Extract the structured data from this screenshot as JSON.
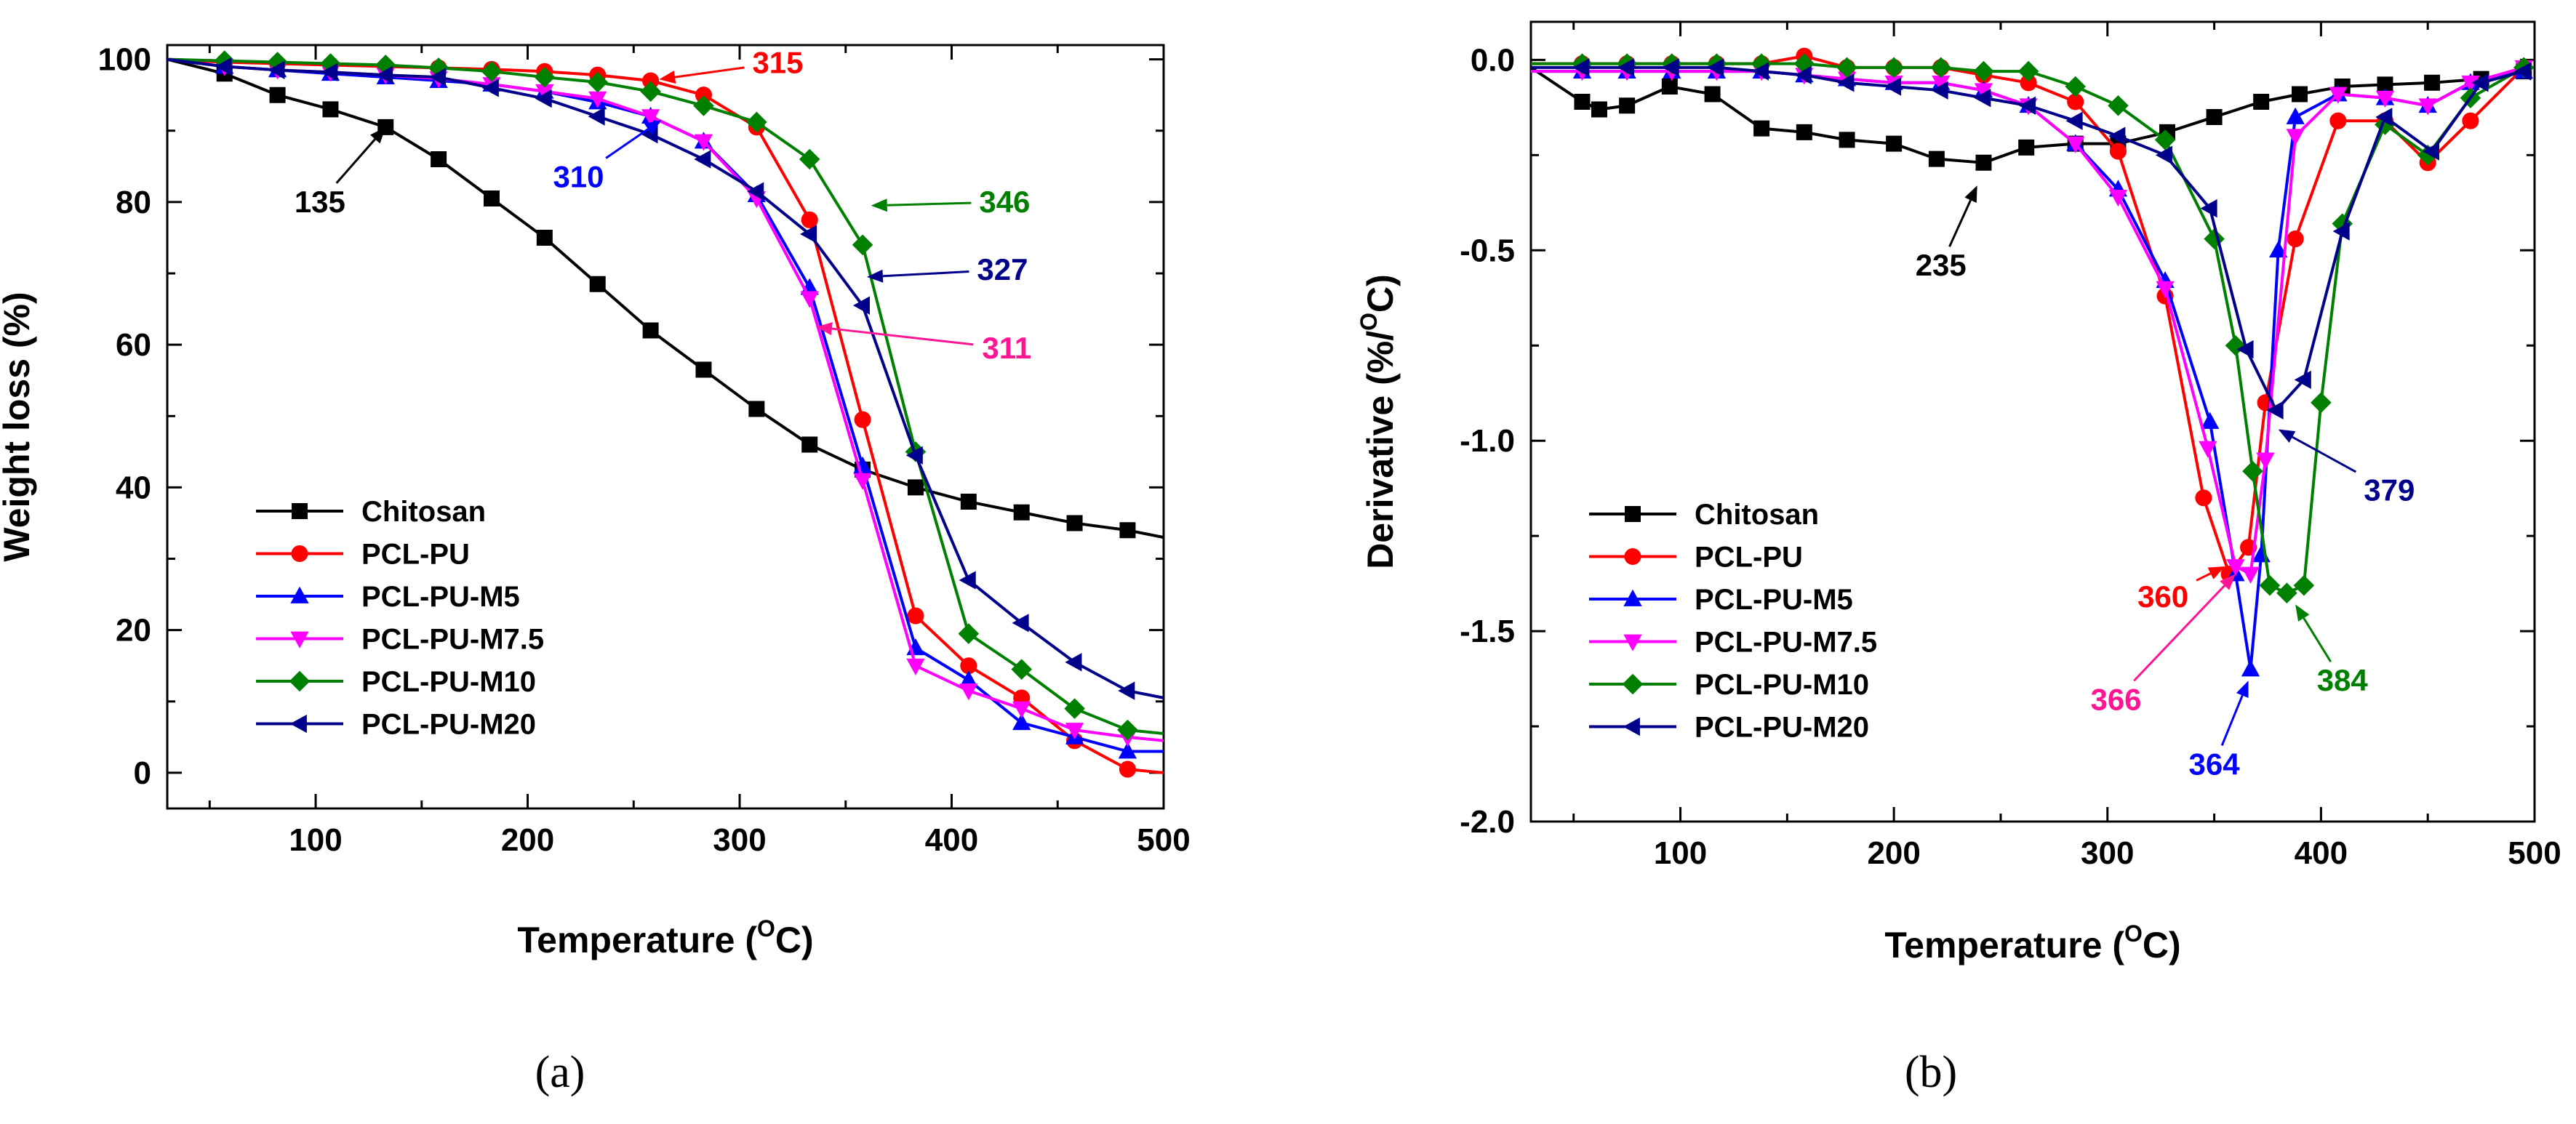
{
  "figure": {
    "panels": [
      {
        "panel_label": "(a)"
      },
      {
        "panel_label": "(b)"
      }
    ]
  },
  "chart_data": [
    {
      "type": "line",
      "title": "",
      "xlabel": "Temperature (°C)",
      "xlabel_parts": {
        "text": "Temperature (",
        "sup": "O",
        "unit": "C)"
      },
      "ylabel": "Weight loss (%)",
      "xlim": [
        30,
        500
      ],
      "ylim": [
        -5,
        102
      ],
      "xticks": [
        100,
        200,
        300,
        400,
        500
      ],
      "yticks": [
        0,
        20,
        40,
        60,
        80,
        100
      ],
      "legend_position": "bottom-left",
      "series": [
        {
          "name": "Chitosan",
          "color": "#000000",
          "marker": "square",
          "x": [
            30,
            57,
            82,
            107,
            133,
            158,
            183,
            208,
            233,
            258,
            283,
            308,
            333,
            358,
            383,
            408,
            433,
            458,
            483,
            500
          ],
          "y": [
            100,
            98,
            95,
            93,
            90.5,
            86,
            80.5,
            75,
            68.5,
            62,
            56.5,
            51,
            46,
            42.5,
            40,
            38,
            36.5,
            35,
            34,
            33
          ]
        },
        {
          "name": "PCL-PU",
          "color": "#ff0000",
          "marker": "circle",
          "x": [
            30,
            57,
            82,
            107,
            133,
            158,
            183,
            208,
            233,
            258,
            283,
            308,
            333,
            358,
            383,
            408,
            433,
            458,
            483,
            500
          ],
          "y": [
            100,
            99.6,
            99.4,
            99.2,
            99,
            98.8,
            98.6,
            98.3,
            97.8,
            97,
            95,
            90.5,
            77.5,
            49.5,
            22,
            15,
            10.5,
            4.5,
            0.5,
            0
          ]
        },
        {
          "name": "PCL-PU-M5",
          "color": "#0000ff",
          "marker": "triangle-up",
          "x": [
            30,
            57,
            82,
            107,
            133,
            158,
            183,
            208,
            233,
            258,
            283,
            308,
            333,
            358,
            383,
            408,
            433,
            458,
            483,
            500
          ],
          "y": [
            100,
            99,
            98.5,
            98,
            97.5,
            97,
            96.5,
            95.5,
            94,
            92,
            88.5,
            81,
            68,
            43,
            17.5,
            13,
            7,
            5,
            3,
            3
          ]
        },
        {
          "name": "PCL-PU-M7.5",
          "color": "#ff00ff",
          "marker": "triangle-down",
          "x": [
            30,
            57,
            82,
            107,
            133,
            158,
            183,
            208,
            233,
            258,
            283,
            308,
            333,
            358,
            383,
            408,
            433,
            458,
            483,
            500
          ],
          "y": [
            100,
            99,
            98.5,
            98.2,
            97.8,
            97.3,
            96.5,
            95.5,
            94.5,
            92,
            88.5,
            80.5,
            66.5,
            41,
            15,
            11.5,
            9,
            6,
            5,
            4.5
          ]
        },
        {
          "name": "PCL-PU-M10",
          "color": "#008000",
          "marker": "diamond",
          "x": [
            30,
            57,
            82,
            107,
            133,
            158,
            183,
            208,
            233,
            258,
            283,
            308,
            333,
            358,
            383,
            408,
            433,
            458,
            483,
            500
          ],
          "y": [
            100,
            99.8,
            99.6,
            99.4,
            99.2,
            98.8,
            98.3,
            97.5,
            96.8,
            95.5,
            93.5,
            91.2,
            86,
            74,
            45,
            19.5,
            14.5,
            9,
            6,
            5.5
          ]
        },
        {
          "name": "PCL-PU-M20",
          "color": "#00008b",
          "marker": "triangle-left",
          "x": [
            30,
            57,
            82,
            107,
            133,
            158,
            183,
            208,
            233,
            258,
            283,
            308,
            333,
            358,
            383,
            408,
            433,
            458,
            483,
            500
          ],
          "y": [
            100,
            99,
            98.5,
            98.2,
            97.8,
            97.5,
            96,
            94.5,
            92,
            89.5,
            86,
            81.5,
            75.5,
            65.5,
            44.5,
            27,
            21,
            15.5,
            11.5,
            10.5
          ]
        }
      ],
      "annotations": [
        {
          "text": "135",
          "color": "#000000",
          "target": [
            133,
            90.5
          ],
          "label_at": [
            102,
            80
          ]
        },
        {
          "text": "315",
          "color": "#ff0000",
          "target": [
            262,
            97.2
          ],
          "label_at": [
            318,
            99.5
          ]
        },
        {
          "text": "310",
          "color": "#0000ff",
          "target": [
            263,
            91.5
          ],
          "label_at": [
            224,
            83.5
          ]
        },
        {
          "text": "346",
          "color": "#008000",
          "target": [
            362,
            79.5
          ],
          "label_at": [
            425,
            80
          ]
        },
        {
          "text": "327",
          "color": "#00008b",
          "target": [
            360,
            69.5
          ],
          "label_at": [
            424,
            70.5
          ]
        },
        {
          "text": "311",
          "color": "#ff1493",
          "target": [
            336,
            62.5
          ],
          "label_at": [
            426,
            59.5
          ]
        }
      ]
    },
    {
      "type": "line",
      "title": "",
      "xlabel": "Temperature (°C)",
      "xlabel_parts": {
        "text": "Temperature (",
        "sup": "O",
        "unit": "C)"
      },
      "ylabel": "Derivative (%/°C)",
      "ylabel_parts": {
        "text": "Derivative (%/",
        "sup": "O",
        "unit": "C)"
      },
      "xlim": [
        30,
        500
      ],
      "ylim": [
        -2.0,
        0.1
      ],
      "xticks": [
        100,
        200,
        300,
        400,
        500
      ],
      "yticks": [
        0.0,
        -0.5,
        -1.0,
        -1.5,
        -2.0
      ],
      "legend_position": "bottom-left",
      "series": [
        {
          "name": "Chitosan",
          "color": "#000000",
          "marker": "square",
          "x": [
            30,
            54,
            62,
            75,
            95,
            115,
            138,
            158,
            178,
            200,
            220,
            242,
            262,
            285,
            305,
            328,
            350,
            372,
            390,
            410,
            430,
            452,
            475,
            495
          ],
          "y": [
            -0.02,
            -0.11,
            -0.13,
            -0.12,
            -0.07,
            -0.09,
            -0.18,
            -0.19,
            -0.21,
            -0.22,
            -0.26,
            -0.27,
            -0.23,
            -0.22,
            -0.22,
            -0.19,
            -0.15,
            -0.11,
            -0.09,
            -0.07,
            -0.065,
            -0.06,
            -0.05,
            -0.03
          ]
        },
        {
          "name": "PCL-PU",
          "color": "#ff0000",
          "marker": "circle",
          "x": [
            30,
            54,
            75,
            96,
            117,
            138,
            158,
            178,
            200,
            222,
            242,
            263,
            285,
            305,
            327,
            345,
            357,
            366,
            374,
            388,
            408,
            430,
            450,
            470,
            495
          ],
          "y": [
            -0.01,
            -0.01,
            -0.01,
            -0.01,
            -0.01,
            -0.01,
            0.01,
            -0.02,
            -0.02,
            -0.02,
            -0.04,
            -0.06,
            -0.11,
            -0.24,
            -0.62,
            -1.15,
            -1.35,
            -1.28,
            -0.9,
            -0.47,
            -0.16,
            -0.16,
            -0.27,
            -0.16,
            -0.02
          ]
        },
        {
          "name": "PCL-PU-M5",
          "color": "#0000ff",
          "marker": "triangle-up",
          "x": [
            30,
            54,
            75,
            96,
            117,
            138,
            158,
            178,
            200,
            222,
            242,
            263,
            285,
            305,
            327,
            348,
            360,
            367,
            372,
            380,
            388,
            408,
            430,
            450,
            470,
            495
          ],
          "y": [
            -0.03,
            -0.03,
            -0.03,
            -0.03,
            -0.03,
            -0.03,
            -0.04,
            -0.05,
            -0.06,
            -0.06,
            -0.08,
            -0.12,
            -0.22,
            -0.34,
            -0.58,
            -0.95,
            -1.35,
            -1.6,
            -1.3,
            -0.5,
            -0.15,
            -0.09,
            -0.1,
            -0.12,
            -0.06,
            -0.03
          ]
        },
        {
          "name": "PCL-PU-M7.5",
          "color": "#ff00ff",
          "marker": "triangle-down",
          "x": [
            30,
            54,
            75,
            96,
            117,
            138,
            158,
            178,
            200,
            222,
            242,
            263,
            285,
            305,
            327,
            347,
            360,
            367,
            374,
            388,
            408,
            430,
            450,
            470,
            495
          ],
          "y": [
            -0.03,
            -0.03,
            -0.03,
            -0.03,
            -0.03,
            -0.03,
            -0.04,
            -0.05,
            -0.06,
            -0.06,
            -0.08,
            -0.12,
            -0.22,
            -0.36,
            -0.6,
            -1.02,
            -1.33,
            -1.35,
            -1.05,
            -0.2,
            -0.09,
            -0.1,
            -0.12,
            -0.06,
            -0.02
          ]
        },
        {
          "name": "PCL-PU-M10",
          "color": "#008000",
          "marker": "diamond",
          "x": [
            30,
            54,
            75,
            96,
            117,
            138,
            158,
            178,
            200,
            222,
            242,
            263,
            285,
            305,
            327,
            350,
            360,
            368,
            376,
            384,
            392,
            400,
            410,
            430,
            450,
            470,
            495
          ],
          "y": [
            -0.01,
            -0.01,
            -0.01,
            -0.01,
            -0.01,
            -0.01,
            -0.01,
            -0.02,
            -0.02,
            -0.02,
            -0.03,
            -0.03,
            -0.07,
            -0.12,
            -0.21,
            -0.47,
            -0.75,
            -1.08,
            -1.38,
            -1.4,
            -1.38,
            -0.9,
            -0.43,
            -0.17,
            -0.25,
            -0.1,
            -0.02
          ]
        },
        {
          "name": "PCL-PU-M20",
          "color": "#00008b",
          "marker": "triangle-left",
          "x": [
            30,
            54,
            75,
            96,
            117,
            138,
            158,
            178,
            200,
            222,
            242,
            263,
            285,
            305,
            327,
            348,
            365,
            379,
            392,
            410,
            430,
            452,
            475,
            495
          ],
          "y": [
            -0.02,
            -0.02,
            -0.02,
            -0.02,
            -0.02,
            -0.03,
            -0.04,
            -0.06,
            -0.07,
            -0.08,
            -0.1,
            -0.12,
            -0.16,
            -0.2,
            -0.25,
            -0.39,
            -0.76,
            -0.92,
            -0.84,
            -0.45,
            -0.15,
            -0.24,
            -0.06,
            -0.03
          ]
        }
      ],
      "annotations": [
        {
          "text": "235",
          "color": "#000000",
          "target": [
            239,
            -0.33
          ],
          "label_at": [
            222,
            -0.54
          ]
        },
        {
          "text": "379",
          "color": "#00008b",
          "target": [
            380,
            -0.97
          ],
          "label_at": [
            432,
            -1.13
          ]
        },
        {
          "text": "360",
          "color": "#ff0000",
          "target": [
            355,
            -1.33
          ],
          "label_at": [
            326,
            -1.41
          ]
        },
        {
          "text": "366",
          "color": "#ff1493",
          "target": [
            360,
            -1.35
          ],
          "label_at": [
            304,
            -1.68
          ]
        },
        {
          "text": "384",
          "color": "#008000",
          "target": [
            388,
            -1.43
          ],
          "label_at": [
            410,
            -1.63
          ]
        },
        {
          "text": "364",
          "color": "#0000ff",
          "target": [
            366,
            -1.63
          ],
          "label_at": [
            350,
            -1.85
          ]
        }
      ]
    }
  ]
}
